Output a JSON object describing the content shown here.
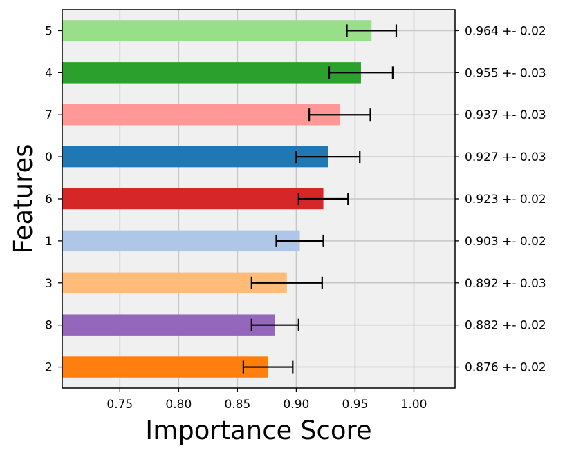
{
  "chart_data": {
    "type": "bar",
    "orientation": "horizontal",
    "xlabel": "Importance Score",
    "ylabel": "Features",
    "xlim": [
      0.701,
      1.035
    ],
    "xticks": [
      0.75,
      0.8,
      0.85,
      0.9,
      0.95,
      1.0
    ],
    "xtick_labels": [
      "0.75",
      "0.80",
      "0.85",
      "0.90",
      "0.95",
      "1.00"
    ],
    "grid": true,
    "background": "#f0f0f0",
    "categories": [
      "5",
      "4",
      "7",
      "0",
      "6",
      "1",
      "3",
      "8",
      "2"
    ],
    "values": [
      0.964,
      0.955,
      0.937,
      0.927,
      0.923,
      0.903,
      0.892,
      0.882,
      0.876
    ],
    "errors": [
      0.021,
      0.027,
      0.026,
      0.027,
      0.021,
      0.02,
      0.03,
      0.02,
      0.021
    ],
    "value_labels": [
      "0.964 +- 0.02",
      "0.955 +- 0.03",
      "0.937 +- 0.03",
      "0.927 +- 0.03",
      "0.923 +- 0.02",
      "0.903 +- 0.02",
      "0.892 +- 0.03",
      "0.882 +- 0.02",
      "0.876 +- 0.02"
    ],
    "colors": [
      "#98df8a",
      "#2ca02c",
      "#ff9896",
      "#1f77b4",
      "#d62728",
      "#aec7e8",
      "#ffbb78",
      "#9467bd",
      "#ff7f0e"
    ]
  }
}
